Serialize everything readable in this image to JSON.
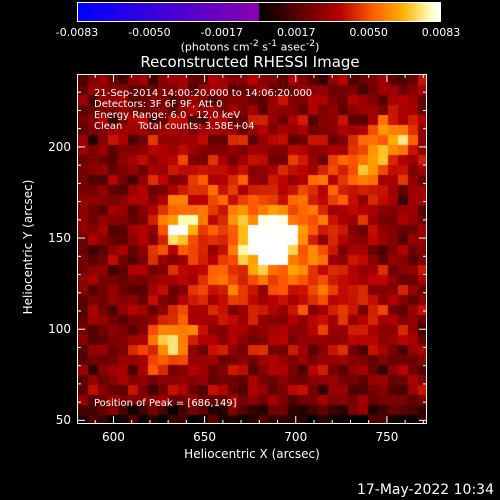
{
  "chart_data": {
    "type": "heatmap",
    "title": "Reconstructed RHESSI Image",
    "xlabel": "Heliocentric X (arcsec)",
    "ylabel": "Heliocentric Y (arcsec)",
    "xlim": [
      580,
      772
    ],
    "ylim": [
      48,
      240
    ],
    "x_ticks": [
      600,
      650,
      700,
      750
    ],
    "y_ticks": [
      50,
      100,
      150,
      200
    ],
    "x_tick_labels": [
      "600",
      "650",
      "700",
      "750"
    ],
    "y_tick_labels": [
      "50",
      "100",
      "150",
      "200"
    ],
    "colorbar": {
      "colormap": "red-temperature",
      "range": [
        -0.0083,
        0.0083
      ],
      "tick_labels": [
        "-0.0083",
        "-0.0050",
        "-0.0017",
        "0.0017",
        "0.0050",
        "0.0083"
      ],
      "units_base": "(photons cm",
      "units_exp1": "-2",
      "units_mid1": " s",
      "units_exp2": "-1",
      "units_mid2": " asec",
      "units_exp3": "-2",
      "units_end": ")"
    },
    "annotations": {
      "time_range": "21-Sep-2014 14:00:20.000 to 14:06:20.000",
      "detectors": "Detectors: 3F 6F 9F, Att 0",
      "energy_range": "Energy Range: 6.0 - 12.0 keV",
      "clean_counts": "Clean     Total counts: 3.58E+04",
      "peak_position": "Position of Peak = [686,149]"
    },
    "sources": [
      {
        "x": 686,
        "y": 149,
        "intensity": 1.0
      },
      {
        "x": 636,
        "y": 156,
        "intensity": 0.78
      },
      {
        "x": 630,
        "y": 92,
        "intensity": 0.62
      },
      {
        "x": 755,
        "y": 205,
        "intensity": 0.55
      },
      {
        "x": 740,
        "y": 190,
        "intensity": 0.45
      }
    ]
  },
  "footer": {
    "date": "17-May-2022 10:34"
  }
}
